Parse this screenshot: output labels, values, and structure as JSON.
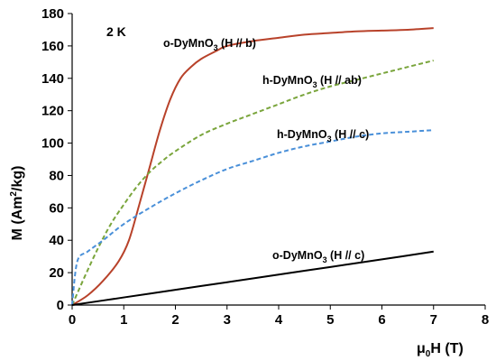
{
  "chart_data": {
    "type": "line",
    "xlabel": "μ0H (T)",
    "ylabel": "M (Am2/kg)",
    "xlim": [
      0,
      8
    ],
    "ylim": [
      0,
      180
    ],
    "x_ticks": [
      0,
      1,
      2,
      3,
      4,
      5,
      6,
      7,
      8
    ],
    "y_ticks": [
      0,
      20,
      40,
      60,
      80,
      100,
      120,
      140,
      160,
      180
    ],
    "grid": false,
    "annotations": {
      "temperature": "2 K",
      "o_b": "o-DyMnO3 (H // b)",
      "h_ab": "h-DyMnO3 (H // ab)",
      "h_c": "h-DyMnO3 (H // c)",
      "o_c": "o-DyMnO3 (H // c)"
    },
    "series": [
      {
        "color": "#b8422a",
        "style": "solid",
        "x": [
          0,
          0.3,
          0.6,
          0.9,
          1.1,
          1.3,
          1.5,
          1.7,
          1.9,
          2.1,
          2.3,
          2.5,
          2.8,
          3.0,
          3.5,
          4.0,
          4.5,
          5.0,
          5.5,
          6.0,
          6.5,
          7.0
        ],
        "y": [
          0,
          6,
          15,
          27,
          40,
          62,
          85,
          108,
          127,
          140,
          147,
          152,
          157,
          160,
          163,
          165,
          167,
          168,
          169,
          169.5,
          170,
          171
        ]
      },
      {
        "color": "#7aa53c",
        "style": "dashed",
        "x": [
          0,
          0.25,
          0.5,
          0.75,
          1.0,
          1.25,
          1.5,
          1.75,
          2.0,
          2.5,
          3.0,
          3.5,
          4.0,
          4.5,
          5.0,
          5.5,
          6.0,
          6.5,
          7.0
        ],
        "y": [
          0,
          18,
          35,
          50,
          62,
          73,
          82,
          89,
          95,
          105,
          112,
          118,
          124,
          130,
          135,
          139,
          143,
          147,
          151
        ]
      },
      {
        "color": "#4a90d9",
        "style": "dashed",
        "x": [
          0,
          0.1,
          0.3,
          0.6,
          1.0,
          1.5,
          2.0,
          2.5,
          3.0,
          3.5,
          4.0,
          4.5,
          5.0,
          5.5,
          6.0,
          6.5,
          7.0
        ],
        "y": [
          0,
          27,
          33,
          40,
          50,
          60,
          69,
          77,
          84,
          89,
          94,
          98,
          101,
          104,
          106,
          107,
          108
        ]
      },
      {
        "color": "#000000",
        "style": "solid",
        "x": [
          0,
          1,
          2,
          3,
          4,
          5,
          6,
          7
        ],
        "y": [
          0,
          4.7,
          9.4,
          14.1,
          18.8,
          23.5,
          28.2,
          33
        ]
      }
    ]
  }
}
